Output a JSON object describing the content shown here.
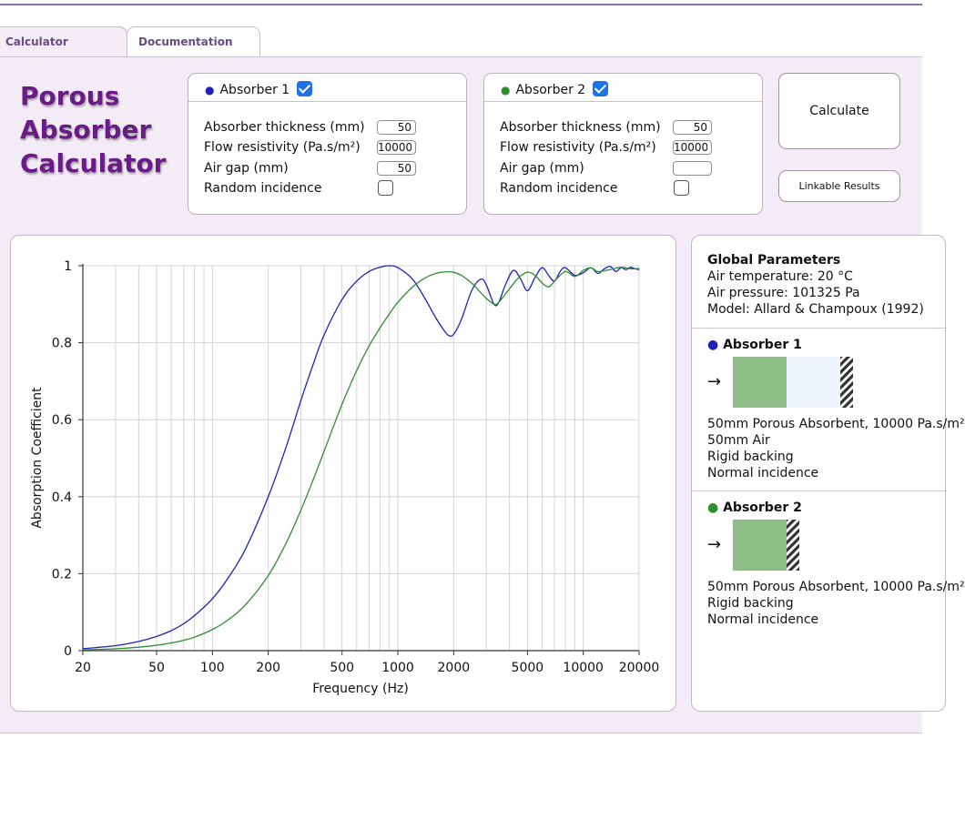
{
  "tabs": [
    {
      "label": "Calculator",
      "active": true
    },
    {
      "label": "Documentation",
      "active": false
    }
  ],
  "app_title": [
    "Porous",
    "Absorber",
    "Calculator"
  ],
  "colors": {
    "accent": "#6a1b86",
    "absorber1": "#1f22b5",
    "absorber2": "#2f8f2f",
    "check": "#1e72e8"
  },
  "absorber1": {
    "title": "Absorber 1",
    "enabled": true,
    "labels": {
      "thickness": "Absorber thickness (mm)",
      "flow": "Flow resistivity (Pa.s/m²)",
      "airgap": "Air gap (mm)",
      "random": "Random incidence"
    },
    "values": {
      "thickness": "50",
      "flow": "10000",
      "airgap": "50"
    },
    "random_incidence": false
  },
  "absorber2": {
    "title": "Absorber 2",
    "enabled": true,
    "labels": {
      "thickness": "Absorber thickness (mm)",
      "flow": "Flow resistivity (Pa.s/m²)",
      "airgap": "Air gap (mm)",
      "random": "Random incidence"
    },
    "values": {
      "thickness": "50",
      "flow": "10000",
      "airgap": ""
    },
    "random_incidence": false
  },
  "buttons": {
    "calculate": "Calculate",
    "linkable": "Linkable Results"
  },
  "info": {
    "global_title": "Global Parameters",
    "air_temperature": "Air temperature: 20 °C",
    "air_pressure": "Air pressure: 101325 Pa",
    "model": "Model: Allard & Champoux (1992)",
    "absorber1": {
      "title": "Absorber 1",
      "lines": [
        "50mm Porous Absorbent, 10000 Pa.s/m²",
        "50mm Air",
        "Rigid backing",
        "Normal incidence"
      ]
    },
    "absorber2": {
      "title": "Absorber 2",
      "lines": [
        "50mm Porous Absorbent, 10000 Pa.s/m²",
        "Rigid backing",
        "Normal incidence"
      ]
    },
    "arrow_glyph": "→"
  },
  "chart_data": {
    "type": "line",
    "xlabel": "Frequency (Hz)",
    "ylabel": "Absorption Coefficient",
    "xscale": "log",
    "xlim": [
      20,
      20000
    ],
    "ylim": [
      0,
      1
    ],
    "xticks": [
      20,
      50,
      100,
      200,
      500,
      1000,
      2000,
      5000,
      10000,
      20000
    ],
    "yticks": [
      0,
      0.2,
      0.4,
      0.6,
      0.8,
      1
    ],
    "ytick_labels": [
      "0",
      "0.2",
      "0.4",
      "0.6",
      "0.8",
      "1"
    ],
    "grid": true,
    "legend": "none",
    "series": [
      {
        "color": "#1f22b5",
        "x": [
          20,
          30,
          40,
          50,
          60,
          70,
          80,
          100,
          120,
          150,
          200,
          250,
          300,
          350,
          400,
          500,
          600,
          700,
          800,
          900,
          1000,
          1200,
          1400,
          1600,
          1800,
          1900,
          2000,
          2200,
          2500,
          2800,
          3000,
          3300,
          3500,
          3800,
          4200,
          4600,
          5000,
          5500,
          6000,
          6500,
          7000,
          7500,
          8000,
          9000,
          10000,
          11000,
          12000,
          13000,
          14000,
          15000,
          16000,
          17000,
          18000,
          19000,
          20000
        ],
        "y": [
          0.005,
          0.013,
          0.024,
          0.037,
          0.052,
          0.07,
          0.091,
          0.135,
          0.185,
          0.262,
          0.4,
          0.53,
          0.65,
          0.745,
          0.82,
          0.912,
          0.96,
          0.985,
          0.996,
          1.0,
          0.995,
          0.965,
          0.915,
          0.865,
          0.828,
          0.818,
          0.822,
          0.86,
          0.935,
          0.965,
          0.95,
          0.9,
          0.905,
          0.95,
          0.988,
          0.965,
          0.935,
          0.97,
          0.995,
          0.975,
          0.96,
          0.985,
          0.995,
          0.975,
          0.982,
          0.995,
          0.98,
          0.992,
          0.998,
          0.985,
          0.995,
          0.99,
          0.996,
          0.992,
          0.99
        ]
      },
      {
        "color": "#2f8f2f",
        "x": [
          20,
          30,
          40,
          50,
          60,
          70,
          80,
          100,
          120,
          150,
          200,
          250,
          300,
          350,
          400,
          500,
          600,
          700,
          800,
          900,
          1000,
          1200,
          1400,
          1600,
          1800,
          2000,
          2200,
          2500,
          2800,
          3000,
          3300,
          3500,
          4000,
          4500,
          5000,
          5500,
          6000,
          6500,
          7000,
          8000,
          9000,
          10000,
          11000,
          12000,
          14000,
          16000,
          18000,
          20000
        ],
        "y": [
          0.002,
          0.005,
          0.009,
          0.014,
          0.02,
          0.027,
          0.035,
          0.055,
          0.078,
          0.118,
          0.195,
          0.28,
          0.365,
          0.445,
          0.518,
          0.64,
          0.728,
          0.792,
          0.838,
          0.875,
          0.905,
          0.945,
          0.968,
          0.98,
          0.984,
          0.983,
          0.975,
          0.955,
          0.93,
          0.915,
          0.9,
          0.905,
          0.94,
          0.97,
          0.983,
          0.975,
          0.955,
          0.945,
          0.96,
          0.985,
          0.972,
          0.988,
          0.995,
          0.985,
          0.99,
          0.996,
          0.992,
          0.993
        ]
      }
    ]
  }
}
